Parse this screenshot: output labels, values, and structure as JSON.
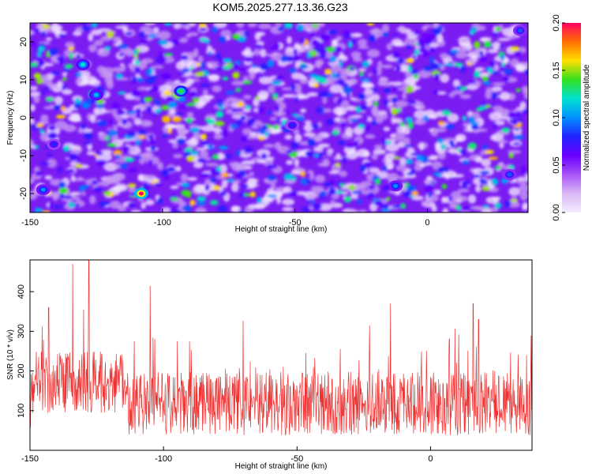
{
  "figure": {
    "title": "KOM5.2025.277.13.36.G23"
  },
  "chart_data": [
    {
      "type": "heatmap",
      "xlabel": "Height of straight line (km)",
      "ylabel": "Frequency (Hz)",
      "xlim": [
        -150,
        38
      ],
      "ylim": [
        -25,
        25
      ],
      "xticks": [
        -150,
        -100,
        -50,
        0
      ],
      "yticks": [
        -20,
        -10,
        0,
        10,
        20
      ],
      "colorbar": {
        "label": "Normalized spectral amplitude",
        "range": [
          0.0,
          0.2
        ],
        "ticks": [
          "0.00",
          "0.05",
          "0.10",
          "0.15",
          "0.20"
        ],
        "colors": [
          "#f3ecff",
          "#d9b8f5",
          "#a855f7",
          "#6a00ff",
          "#2222ff",
          "#0090ff",
          "#00e0d0",
          "#30e020",
          "#ffe000",
          "#ff7000",
          "#ff0060"
        ]
      },
      "background_color": "#7a1cf2",
      "hotspots": [
        {
          "x": -108,
          "y": -20,
          "value": 0.2
        },
        {
          "x": -93,
          "y": 7,
          "value": 0.14
        },
        {
          "x": -130,
          "y": 14,
          "value": 0.12
        },
        {
          "x": -125,
          "y": 6,
          "value": 0.11
        },
        {
          "x": -145,
          "y": -19,
          "value": 0.1
        },
        {
          "x": -12,
          "y": -18,
          "value": 0.1
        },
        {
          "x": 31,
          "y": -15,
          "value": 0.09
        },
        {
          "x": 35,
          "y": 23,
          "value": 0.09
        },
        {
          "x": -141,
          "y": -7,
          "value": 0.08
        },
        {
          "x": -51,
          "y": -2,
          "value": 0.08
        }
      ]
    },
    {
      "type": "line",
      "xlabel": "Height of straight line (km)",
      "ylabel": "SNR (10 * v/v)",
      "xlim": [
        -150,
        38
      ],
      "ylim": [
        0,
        480
      ],
      "xticks": [
        -150,
        -100,
        -50,
        0
      ],
      "yticks": [
        100,
        200,
        300,
        400
      ],
      "series": [
        {
          "color": "#ee3333",
          "samples": 1200,
          "description_values": {
            "baseline_mean": 110,
            "peak_region_x": [
              -140,
              -120
            ],
            "peak_max": 480,
            "notable_peaks": [
              {
                "x": -134,
                "y": 470
              },
              {
                "x": -128,
                "y": 480
              },
              {
                "x": -105,
                "y": 415
              },
              {
                "x": -143,
                "y": 360
              },
              {
                "x": -15,
                "y": 370
              },
              {
                "x": 16,
                "y": 370
              },
              {
                "x": 18,
                "y": 330
              }
            ]
          }
        }
      ]
    }
  ]
}
